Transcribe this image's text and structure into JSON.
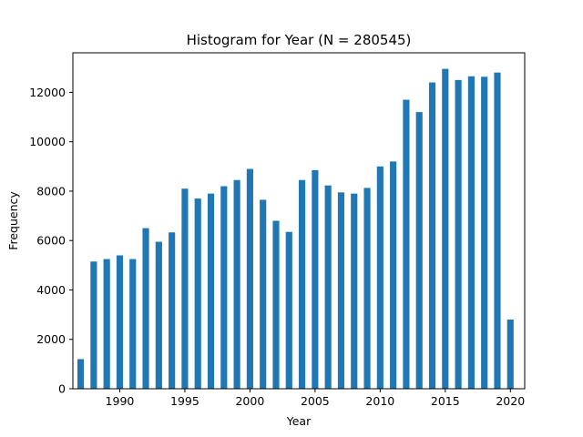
{
  "chart_data": {
    "type": "bar",
    "title": "Histogram for Year (N = 280545)",
    "xlabel": "Year",
    "ylabel": "Frequency",
    "x": [
      1987,
      1988,
      1989,
      1990,
      1991,
      1992,
      1993,
      1994,
      1995,
      1996,
      1997,
      1998,
      1999,
      2000,
      2001,
      2002,
      2003,
      2004,
      2005,
      2006,
      2007,
      2008,
      2009,
      2010,
      2011,
      2012,
      2013,
      2014,
      2015,
      2016,
      2017,
      2018,
      2019,
      2020
    ],
    "values": [
      1200,
      5150,
      5250,
      5400,
      5250,
      6500,
      5950,
      6330,
      8100,
      7700,
      7900,
      8200,
      8450,
      8900,
      7650,
      6800,
      6350,
      8450,
      8850,
      8230,
      7950,
      7900,
      8130,
      9000,
      9200,
      11700,
      11200,
      12400,
      12950,
      12500,
      12650,
      12630,
      12800,
      2800
    ],
    "xlim": [
      1986.4,
      2021.1
    ],
    "ylim": [
      0,
      13600
    ],
    "xticks": [
      1990,
      1995,
      2000,
      2005,
      2010,
      2015,
      2020
    ],
    "yticks": [
      0,
      2000,
      4000,
      6000,
      8000,
      10000,
      12000
    ],
    "bar_width": 0.5,
    "bar_color": "#1f77b4",
    "grid": false,
    "legend": "none"
  }
}
